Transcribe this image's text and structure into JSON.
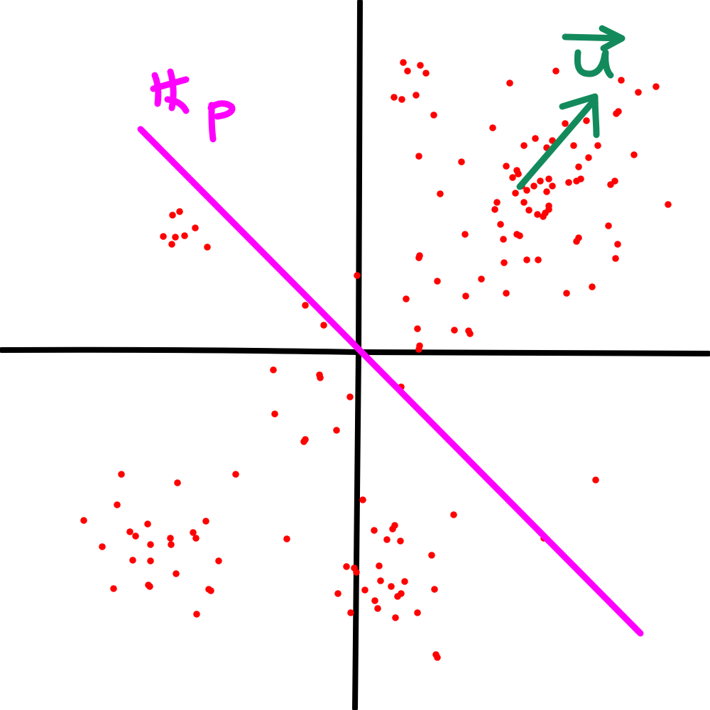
{
  "labels": {
    "hyperplane": "Hp",
    "vector": "u"
  },
  "colors": {
    "axes": "#000000",
    "hyperplane": "#ff00ff",
    "vector": "#138a5c",
    "points": "#ff0000"
  }
}
